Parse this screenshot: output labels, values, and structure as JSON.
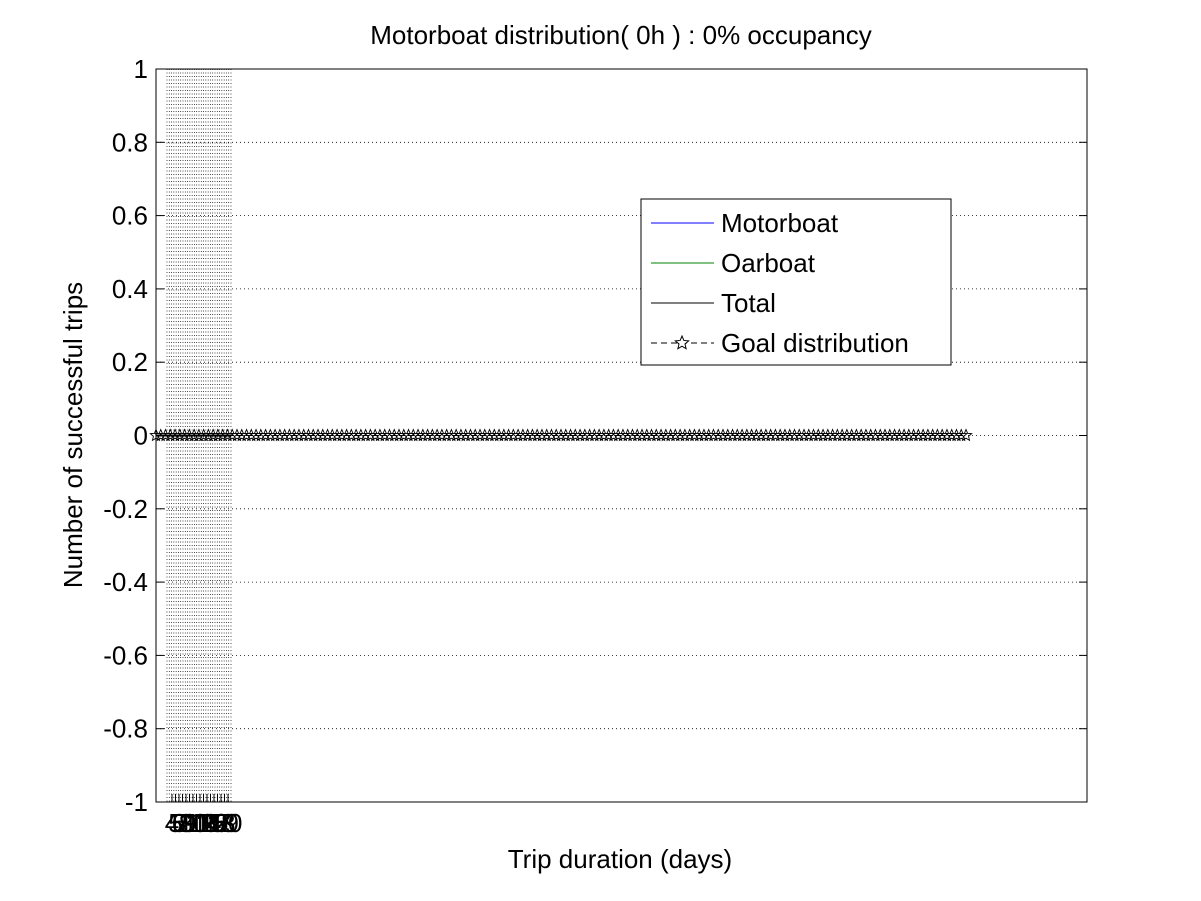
{
  "chart_data": {
    "type": "line",
    "title": "Motorboat distribution( 0h ) : 0% occupancy",
    "xlabel": "Trip duration (days)",
    "ylabel": "Number of successful trips",
    "ylim": [
      -1,
      1
    ],
    "yticks": [
      "-1",
      "-0.8",
      "-0.6",
      "-0.4",
      "-0.2",
      "0",
      "0.2",
      "0.4",
      "0.6",
      "0.8",
      "1"
    ],
    "xtick_labels": [
      "4",
      "5",
      "6",
      "7",
      "8",
      "9",
      "10",
      "11",
      "12",
      "13",
      "14",
      "15",
      "16",
      "17",
      "18",
      "19",
      "20"
    ],
    "grid": true,
    "legend_position": "upper-right",
    "series": [
      {
        "name": "Motorboat",
        "color": "#0000ff",
        "style": "solid",
        "marker": "none",
        "value": 0
      },
      {
        "name": "Oarboat",
        "color": "#008000",
        "style": "solid",
        "marker": "none",
        "value": 0
      },
      {
        "name": "Total",
        "color": "#000000",
        "style": "solid",
        "marker": "none",
        "value": 0
      },
      {
        "name": "Goal distribution",
        "color": "#000000",
        "style": "dashed",
        "marker": "star",
        "value": 0
      }
    ]
  }
}
